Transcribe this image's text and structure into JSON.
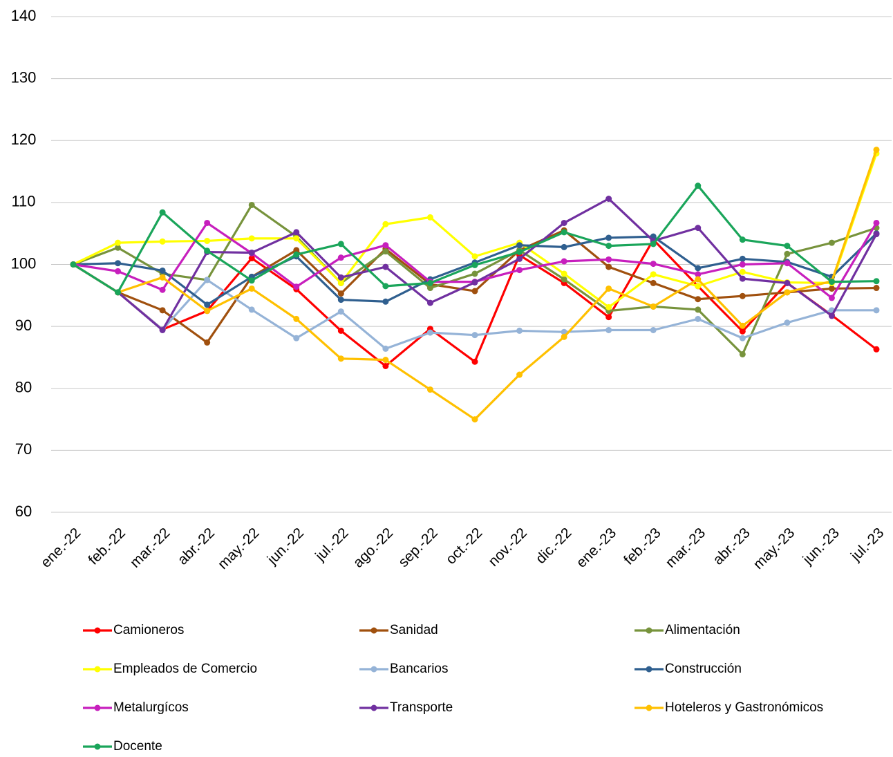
{
  "chart_data": {
    "type": "line",
    "categories": [
      "ene.-22",
      "feb.-22",
      "mar.-22",
      "abr.-22",
      "may.-22",
      "jun.-22",
      "jul.-22",
      "ago.-22",
      "sep.-22",
      "oct.-22",
      "nov.-22",
      "dic.-22",
      "ene.-23",
      "feb.-23",
      "mar.-23",
      "abr.-23",
      "may.-23",
      "jun.-23",
      "jul.-23"
    ],
    "ylim": [
      60,
      140
    ],
    "yticks": [
      60,
      70,
      80,
      90,
      100,
      110,
      120,
      130,
      140
    ],
    "grid": true,
    "legend": "bottom",
    "series": [
      {
        "name": "Camioneros",
        "color": "#ff0000",
        "values": [
          100,
          95.5,
          89.5,
          92.5,
          101,
          96,
          89.3,
          83.6,
          89.6,
          84.3,
          101.5,
          97,
          91.5,
          104,
          96.5,
          89.2,
          97,
          91.8,
          86.3
        ]
      },
      {
        "name": "Sanidad",
        "color": "#a0500e",
        "values": [
          100,
          95.5,
          92.6,
          87.4,
          98,
          102.3,
          95.3,
          102.5,
          96.8,
          95.7,
          102.3,
          105.5,
          99.6,
          97,
          94.4,
          94.9,
          95.5,
          96.1,
          96.2
        ]
      },
      {
        "name": "Alimentación",
        "color": "#77933c",
        "values": [
          100,
          102.7,
          98.5,
          97.5,
          109.6,
          104.5,
          97,
          102.1,
          96.2,
          98.5,
          102.3,
          97.6,
          92.5,
          93.2,
          92.7,
          85.5,
          101.7,
          103.5,
          105.9
        ]
      },
      {
        "name": "Empleados de Comercio",
        "color": "#ffff00",
        "values": [
          100,
          103.5,
          103.7,
          103.8,
          104.2,
          104.2,
          97,
          106.5,
          107.6,
          101.3,
          103.5,
          98.5,
          93.1,
          98.4,
          96.5,
          98.8,
          97.1,
          97,
          117.9
        ]
      },
      {
        "name": "Bancarios",
        "color": "#95b3d7",
        "values": [
          100,
          95.5,
          89.5,
          97.5,
          92.7,
          88.1,
          92.4,
          86.4,
          89,
          88.6,
          89.3,
          89.1,
          89.4,
          89.4,
          91.2,
          88.1,
          90.6,
          92.6,
          92.6
        ]
      },
      {
        "name": "Construcción",
        "color": "#2f5f8f",
        "values": [
          100,
          100.2,
          99,
          93.5,
          98,
          101.3,
          94.3,
          94,
          97.6,
          100.3,
          103.1,
          102.8,
          104.3,
          104.5,
          99.4,
          100.9,
          100.4,
          98,
          105
        ]
      },
      {
        "name": "Metalurgícos",
        "color": "#c71fbd",
        "values": [
          100,
          98.9,
          95.9,
          106.7,
          101.8,
          96.4,
          101.1,
          103.1,
          97.2,
          97.2,
          99.1,
          100.5,
          100.8,
          100.1,
          98.4,
          100,
          100.2,
          94.6,
          106.7
        ]
      },
      {
        "name": "Transporte",
        "color": "#7030a0",
        "values": [
          100,
          95.5,
          89.4,
          102,
          101.9,
          105.2,
          97.9,
          99.6,
          93.8,
          97.1,
          100.9,
          106.7,
          110.6,
          103.8,
          105.9,
          97.7,
          97,
          91.7,
          104.9
        ]
      },
      {
        "name": "Hoteleros y Gastronómicos",
        "color": "#ffc000",
        "values": [
          100,
          95.5,
          97.9,
          92.5,
          96.1,
          91.2,
          84.8,
          84.6,
          79.8,
          75,
          82.2,
          88.3,
          96.1,
          93.2,
          97.6,
          90.1,
          95.5,
          97.3,
          118.5
        ]
      },
      {
        "name": "Docente",
        "color": "#1aa55a",
        "values": [
          100,
          95.5,
          108.4,
          102.2,
          97.4,
          101.6,
          103.3,
          96.5,
          97,
          99.9,
          102,
          105.2,
          103,
          103.3,
          112.7,
          104,
          103,
          97.2,
          97.3
        ]
      }
    ]
  }
}
